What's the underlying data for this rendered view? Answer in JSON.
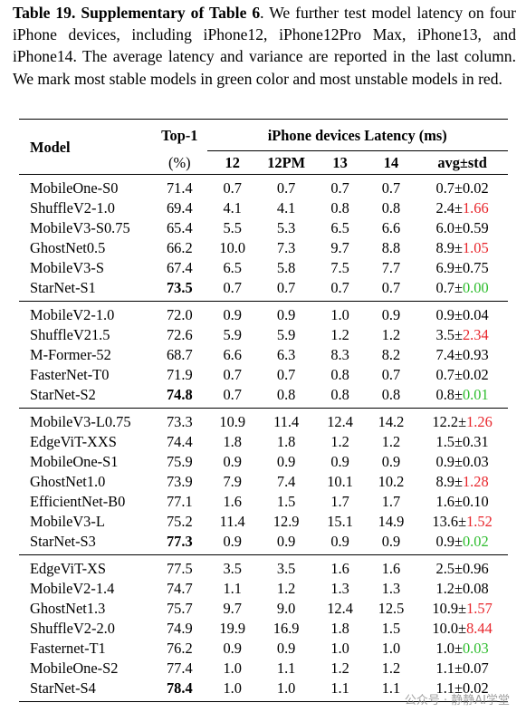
{
  "caption": {
    "label": "Table 19.",
    "bold_title": "Supplementary of Table 6",
    "text": ". We further test model latency on four iPhone devices, including iPhone12, iPhone12Pro Max, iPhone13, and iPhone14. The average latency and variance are reported in the last column. We mark most stable models in green color and most unstable models in red."
  },
  "table": {
    "headers": {
      "model": "Model",
      "top1": "Top-1",
      "top1_unit": "(%)",
      "latency_group": "iPhone devices Latency (ms)",
      "c12": "12",
      "c12pm": "12PM",
      "c13": "13",
      "c14": "14",
      "avg": "avg±std"
    },
    "groups": [
      [
        {
          "model": "MobileOne-S0",
          "top1": "71.4",
          "l12": "0.7",
          "l12pm": "0.7",
          "l13": "0.7",
          "l14": "0.7",
          "avg": "0.7±",
          "std": "0.02",
          "std_color": "",
          "top1_bold": false
        },
        {
          "model": "ShuffleV2-1.0",
          "top1": "69.4",
          "l12": "4.1",
          "l12pm": "4.1",
          "l13": "0.8",
          "l14": "0.8",
          "avg": "2.4±",
          "std": "1.66",
          "std_color": "red",
          "top1_bold": false
        },
        {
          "model": "MobileV3-S0.75",
          "top1": "65.4",
          "l12": "5.5",
          "l12pm": "5.3",
          "l13": "6.5",
          "l14": "6.6",
          "avg": "6.0±",
          "std": "0.59",
          "std_color": "",
          "top1_bold": false
        },
        {
          "model": "GhostNet0.5",
          "top1": "66.2",
          "l12": "10.0",
          "l12pm": "7.3",
          "l13": "9.7",
          "l14": "8.8",
          "avg": "8.9±",
          "std": "1.05",
          "std_color": "red",
          "top1_bold": false
        },
        {
          "model": "MobileV3-S",
          "top1": "67.4",
          "l12": "6.5",
          "l12pm": "5.8",
          "l13": "7.5",
          "l14": "7.7",
          "avg": "6.9±",
          "std": "0.75",
          "std_color": "",
          "top1_bold": false
        },
        {
          "model": "StarNet-S1",
          "top1": "73.5",
          "l12": "0.7",
          "l12pm": "0.7",
          "l13": "0.7",
          "l14": "0.7",
          "avg": "0.7±",
          "std": "0.00",
          "std_color": "green",
          "top1_bold": true
        }
      ],
      [
        {
          "model": "MobileV2-1.0",
          "top1": "72.0",
          "l12": "0.9",
          "l12pm": "0.9",
          "l13": "1.0",
          "l14": "0.9",
          "avg": "0.9±",
          "std": "0.04",
          "std_color": "",
          "top1_bold": false
        },
        {
          "model": "ShuffleV21.5",
          "top1": "72.6",
          "l12": "5.9",
          "l12pm": "5.9",
          "l13": "1.2",
          "l14": "1.2",
          "avg": "3.5±",
          "std": "2.34",
          "std_color": "red",
          "top1_bold": false
        },
        {
          "model": "M-Former-52",
          "top1": "68.7",
          "l12": "6.6",
          "l12pm": "6.3",
          "l13": "8.3",
          "l14": "8.2",
          "avg": "7.4±",
          "std": "0.93",
          "std_color": "",
          "top1_bold": false
        },
        {
          "model": "FasterNet-T0",
          "top1": "71.9",
          "l12": "0.7",
          "l12pm": "0.7",
          "l13": "0.8",
          "l14": "0.7",
          "avg": "0.7±",
          "std": "0.02",
          "std_color": "",
          "top1_bold": false
        },
        {
          "model": "StarNet-S2",
          "top1": "74.8",
          "l12": "0.7",
          "l12pm": "0.8",
          "l13": "0.8",
          "l14": "0.8",
          "avg": "0.8±",
          "std": "0.01",
          "std_color": "green",
          "top1_bold": true
        }
      ],
      [
        {
          "model": "MobileV3-L0.75",
          "top1": "73.3",
          "l12": "10.9",
          "l12pm": "11.4",
          "l13": "12.4",
          "l14": "14.2",
          "avg": "12.2±",
          "std": "1.26",
          "std_color": "red",
          "top1_bold": false
        },
        {
          "model": "EdgeViT-XXS",
          "top1": "74.4",
          "l12": "1.8",
          "l12pm": "1.8",
          "l13": "1.2",
          "l14": "1.2",
          "avg": "1.5±",
          "std": "0.31",
          "std_color": "",
          "top1_bold": false
        },
        {
          "model": "MobileOne-S1",
          "top1": "75.9",
          "l12": "0.9",
          "l12pm": "0.9",
          "l13": "0.9",
          "l14": "0.9",
          "avg": "0.9±",
          "std": "0.03",
          "std_color": "",
          "top1_bold": false
        },
        {
          "model": "GhostNet1.0",
          "top1": "73.9",
          "l12": "7.9",
          "l12pm": "7.4",
          "l13": "10.1",
          "l14": "10.2",
          "avg": "8.9±",
          "std": "1.28",
          "std_color": "red",
          "top1_bold": false
        },
        {
          "model": "EfficientNet-B0",
          "top1": "77.1",
          "l12": "1.6",
          "l12pm": "1.5",
          "l13": "1.7",
          "l14": "1.7",
          "avg": "1.6±",
          "std": "0.10",
          "std_color": "",
          "top1_bold": false
        },
        {
          "model": "MobileV3-L",
          "top1": "75.2",
          "l12": "11.4",
          "l12pm": "12.9",
          "l13": "15.1",
          "l14": "14.9",
          "avg": "13.6±",
          "std": "1.52",
          "std_color": "red",
          "top1_bold": false
        },
        {
          "model": "StarNet-S3",
          "top1": "77.3",
          "l12": "0.9",
          "l12pm": "0.9",
          "l13": "0.9",
          "l14": "0.9",
          "avg": "0.9±",
          "std": "0.02",
          "std_color": "green",
          "top1_bold": true
        }
      ],
      [
        {
          "model": "EdgeViT-XS",
          "top1": "77.5",
          "l12": "3.5",
          "l12pm": "3.5",
          "l13": "1.6",
          "l14": "1.6",
          "avg": "2.5±",
          "std": "0.96",
          "std_color": "",
          "top1_bold": false
        },
        {
          "model": "MobileV2-1.4",
          "top1": "74.7",
          "l12": "1.1",
          "l12pm": "1.2",
          "l13": "1.3",
          "l14": "1.3",
          "avg": "1.2±",
          "std": "0.08",
          "std_color": "",
          "top1_bold": false
        },
        {
          "model": "GhostNet1.3",
          "top1": "75.7",
          "l12": "9.7",
          "l12pm": "9.0",
          "l13": "12.4",
          "l14": "12.5",
          "avg": "10.9±",
          "std": "1.57",
          "std_color": "red",
          "top1_bold": false
        },
        {
          "model": "ShuffleV2-2.0",
          "top1": "74.9",
          "l12": "19.9",
          "l12pm": "16.9",
          "l13": "1.8",
          "l14": "1.5",
          "avg": "10.0±",
          "std": "8.44",
          "std_color": "red",
          "top1_bold": false
        },
        {
          "model": "Fasternet-T1",
          "top1": "76.2",
          "l12": "0.9",
          "l12pm": "0.9",
          "l13": "1.0",
          "l14": "1.0",
          "avg": "1.0±",
          "std": "0.03",
          "std_color": "green",
          "top1_bold": false
        },
        {
          "model": "MobileOne-S2",
          "top1": "77.4",
          "l12": "1.0",
          "l12pm": "1.1",
          "l13": "1.2",
          "l14": "1.2",
          "avg": "1.1±",
          "std": "0.07",
          "std_color": "",
          "top1_bold": false
        },
        {
          "model": "StarNet-S4",
          "top1": "78.4",
          "l12": "1.0",
          "l12pm": "1.0",
          "l13": "1.1",
          "l14": "1.1",
          "avg": "1.1±",
          "std": "0.02",
          "std_color": "",
          "top1_bold": true
        }
      ]
    ]
  },
  "watermark": "公众号 · 静静AI学堂",
  "colors": {
    "red": "#e8262c",
    "green": "#2ebd2e"
  }
}
